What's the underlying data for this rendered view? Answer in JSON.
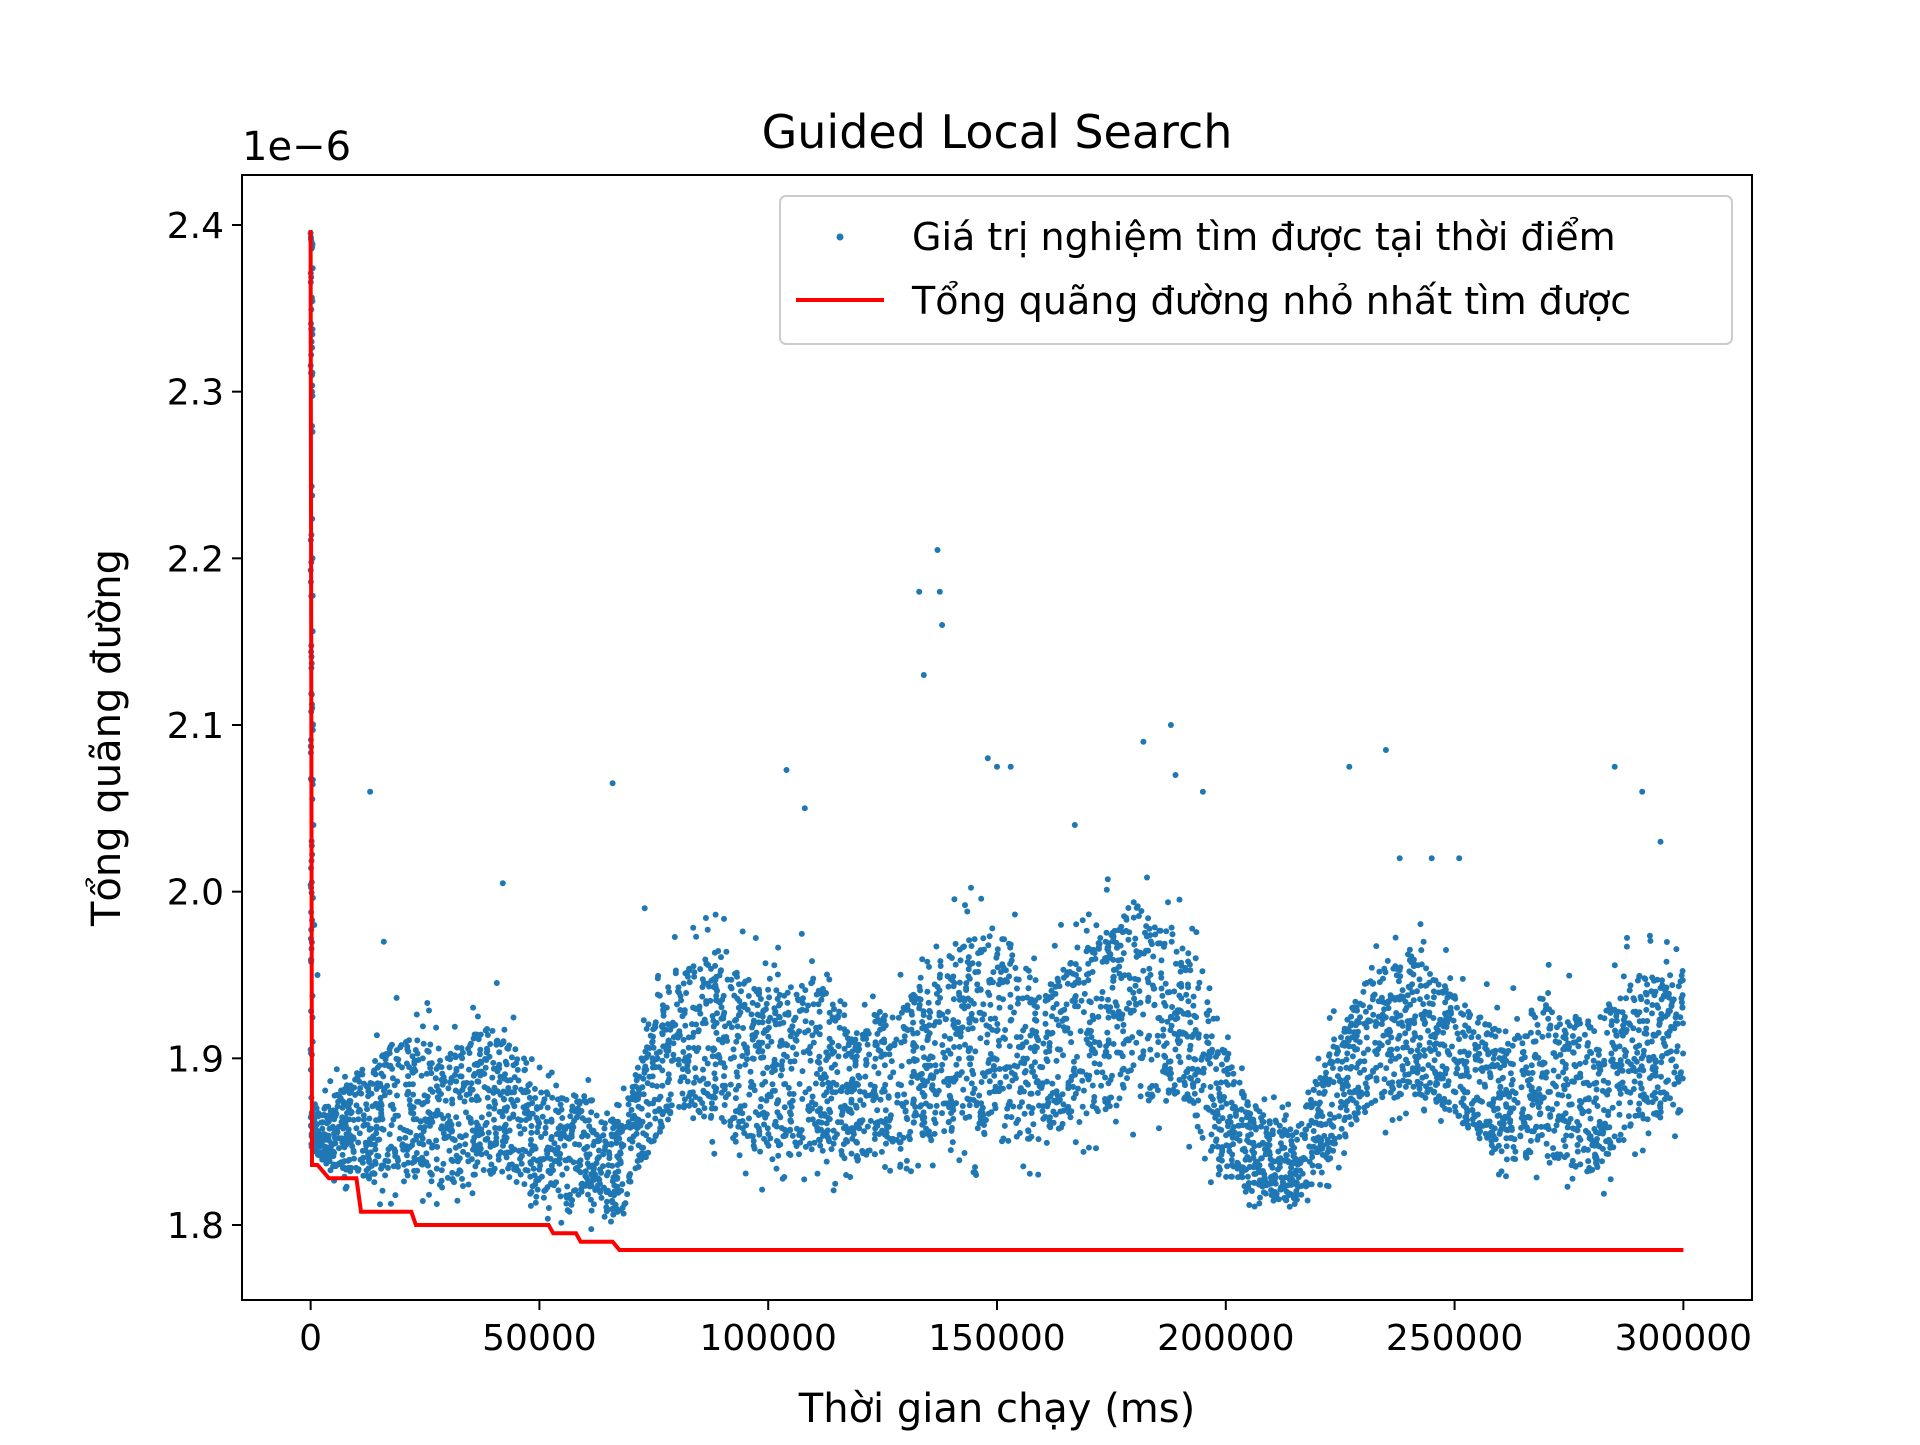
{
  "chart_data": {
    "type": "scatter",
    "title": "Guided Local Search",
    "xlabel": "Thời gian chạy (ms)",
    "ylabel": "Tổng quãng đường",
    "y_offset_text": "1e−6",
    "xlim": [
      -15000,
      315000
    ],
    "ylim": [
      1.755,
      2.43
    ],
    "y_scale_exponent": -6,
    "x_ticks": [
      0,
      50000,
      100000,
      150000,
      200000,
      250000,
      300000
    ],
    "x_tick_labels": [
      "0",
      "50000",
      "100000",
      "150000",
      "200000",
      "250000",
      "300000"
    ],
    "y_ticks": [
      1.8,
      1.9,
      2.0,
      2.1,
      2.2,
      2.3,
      2.4
    ],
    "y_tick_labels": [
      "1.8",
      "1.9",
      "2.0",
      "2.1",
      "2.2",
      "2.3",
      "2.4"
    ],
    "grid": false,
    "legend_position": "top-right",
    "series": [
      {
        "name": "Giá trị nghiệm tìm được tại thời điểm",
        "kind": "scatter",
        "color": "#1f77b4",
        "band": {
          "x": [
            0,
            2000,
            10000,
            20000,
            30000,
            40000,
            50000,
            60000,
            68000,
            72000,
            80000,
            90000,
            100000,
            110000,
            120000,
            130000,
            140000,
            150000,
            160000,
            170000,
            180000,
            190000,
            198000,
            205000,
            215000,
            222000,
            230000,
            240000,
            250000,
            260000,
            270000,
            280000,
            290000,
            300000
          ],
          "low": [
            1.84,
            1.83,
            1.815,
            1.81,
            1.805,
            1.81,
            1.8,
            1.795,
            1.79,
            1.82,
            1.85,
            1.84,
            1.815,
            1.82,
            1.82,
            1.83,
            1.83,
            1.82,
            1.83,
            1.84,
            1.85,
            1.85,
            1.81,
            1.805,
            1.8,
            1.82,
            1.85,
            1.86,
            1.85,
            1.82,
            1.82,
            1.81,
            1.84,
            1.85
          ],
          "high": [
            1.88,
            1.88,
            1.91,
            1.94,
            1.93,
            1.95,
            1.9,
            1.9,
            1.88,
            1.92,
            1.98,
            1.99,
            1.97,
            1.98,
            1.94,
            1.96,
            2.0,
            2.02,
            1.97,
            2.0,
            2.03,
            2.0,
            1.95,
            1.89,
            1.87,
            1.92,
            1.97,
            1.99,
            1.96,
            1.94,
            1.96,
            1.95,
            1.98,
            1.97
          ]
        },
        "outliers": [
          [
            0,
            2.395
          ],
          [
            200,
            2.33
          ],
          [
            300,
            2.3
          ],
          [
            400,
            2.2
          ],
          [
            500,
            2.1
          ],
          [
            600,
            2.04
          ],
          [
            800,
            1.98
          ],
          [
            1500,
            1.95
          ],
          [
            13000,
            2.06
          ],
          [
            16000,
            1.97
          ],
          [
            42000,
            2.005
          ],
          [
            66000,
            2.065
          ],
          [
            73000,
            1.99
          ],
          [
            104000,
            2.073
          ],
          [
            108000,
            2.05
          ],
          [
            133000,
            2.18
          ],
          [
            134000,
            2.13
          ],
          [
            137000,
            2.205
          ],
          [
            137500,
            2.18
          ],
          [
            138000,
            2.16
          ],
          [
            148000,
            2.08
          ],
          [
            150000,
            2.075
          ],
          [
            153000,
            2.075
          ],
          [
            167000,
            2.04
          ],
          [
            182000,
            2.09
          ],
          [
            188000,
            2.1
          ],
          [
            189000,
            2.07
          ],
          [
            195000,
            2.06
          ],
          [
            227000,
            2.075
          ],
          [
            235000,
            2.085
          ],
          [
            238000,
            2.02
          ],
          [
            245000,
            2.02
          ],
          [
            251000,
            2.02
          ],
          [
            285000,
            2.075
          ],
          [
            291000,
            2.06
          ],
          [
            295000,
            2.03
          ]
        ]
      },
      {
        "name": "Tổng quãng đường nhỏ nhất tìm được",
        "kind": "step-line",
        "color": "#ff0000",
        "x": [
          0,
          300,
          1500,
          4000,
          10000,
          11000,
          22000,
          23000,
          52000,
          53000,
          58000,
          59000,
          66000,
          67500,
          300000
        ],
        "y": [
          2.397,
          1.836,
          1.836,
          1.828,
          1.828,
          1.808,
          1.808,
          1.8,
          1.8,
          1.795,
          1.795,
          1.79,
          1.79,
          1.785,
          1.785
        ]
      }
    ]
  }
}
